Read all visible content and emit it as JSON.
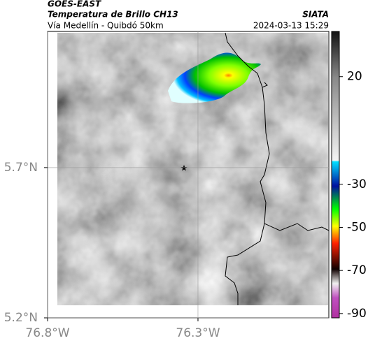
{
  "header": {
    "title": "GOES-EAST",
    "subtitle": "Temperatura de Brillo CH13",
    "region": "Vía Medellín - Quibdó 50km",
    "source": "SIATA",
    "datetime": "2024-03-13 15:29"
  },
  "map": {
    "xlim": [
      -76.8,
      -75.865
    ],
    "ylim": [
      5.2,
      6.153
    ],
    "xticks": [
      {
        "value": -76.8,
        "label": "76.8°W"
      },
      {
        "value": -76.3,
        "label": "76.3°W"
      }
    ],
    "yticks": [
      {
        "value": 5.2,
        "label": "5.2°N"
      },
      {
        "value": 5.7,
        "label": "5.7°N"
      }
    ],
    "grid": true
  },
  "colorbar": {
    "lim": [
      41,
      -92
    ],
    "ticks": [
      20,
      -30,
      -50,
      -70,
      -90
    ]
  }
}
